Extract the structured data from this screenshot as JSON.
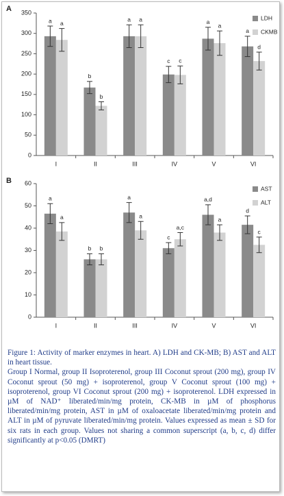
{
  "chart_data": [
    {
      "type": "bar",
      "label": "A",
      "categories": [
        "I",
        "II",
        "III",
        "IV",
        "V",
        "VI"
      ],
      "series": [
        {
          "name": "LDH",
          "color": "#8a8a8a",
          "values": [
            293,
            167,
            293,
            199,
            287,
            268
          ],
          "errors": [
            25,
            15,
            28,
            20,
            28,
            25
          ],
          "letters": [
            "a",
            "b",
            "a",
            "c",
            "a",
            "a"
          ]
        },
        {
          "name": "CKMB",
          "color": "#d2d2d2",
          "values": [
            284,
            122,
            293,
            198,
            276,
            232
          ],
          "errors": [
            28,
            10,
            28,
            22,
            30,
            22
          ],
          "letters": [
            "a",
            "b",
            "a",
            "c",
            "a",
            "d"
          ]
        }
      ],
      "ylim": [
        0,
        350
      ],
      "yticks": [
        0,
        50,
        100,
        150,
        200,
        250,
        300,
        350
      ]
    },
    {
      "type": "bar",
      "label": "B",
      "categories": [
        "I",
        "II",
        "III",
        "IV",
        "V",
        "VI"
      ],
      "series": [
        {
          "name": "AST",
          "color": "#8a8a8a",
          "values": [
            46.5,
            26,
            47,
            31,
            46,
            41.5
          ],
          "errors": [
            4.5,
            2.5,
            4.5,
            2.5,
            4.5,
            4
          ],
          "letters": [
            "a",
            "b",
            "a",
            "c",
            "a,d",
            "d"
          ]
        },
        {
          "name": "ALT",
          "color": "#d2d2d2",
          "values": [
            38.5,
            26,
            39,
            35,
            38,
            32.5
          ],
          "errors": [
            4,
            2.5,
            4,
            3,
            3.5,
            3.5
          ],
          "letters": [
            "a",
            "b",
            "a",
            "a,c",
            "a",
            "c"
          ]
        }
      ],
      "ylim": [
        0,
        60
      ],
      "yticks": [
        0,
        10,
        20,
        30,
        40,
        50,
        60
      ]
    }
  ],
  "caption": {
    "title": "Figure 1: Activity of marker enzymes in heart. A) LDH and CK-MB; B) AST and ALT in heart tissue.",
    "body": "Group I Normal, group II Isoproterenol, group III Coconut sprout (200 mg), group IV Coconut sprout (50 mg) + isoproterenol, group V Coconut sprout (100 mg) + isoproterenol, group VI Coconut sprout (200 mg) + isoproterenol. LDH expressed in µM of NAD⁺ liberated/min/mg protein, CK-MB in µM of phosphorus liberated/min/mg protein, AST in µM of oxaloacetate liberated/min/mg protein and ALT in µM of pyruvate liberated/min/mg protein. Values expressed as mean ± SD for six rats in each group. Values not sharing a common superscript (a, b, c, d) differ significantly at p<0.05 (DMRT)"
  }
}
